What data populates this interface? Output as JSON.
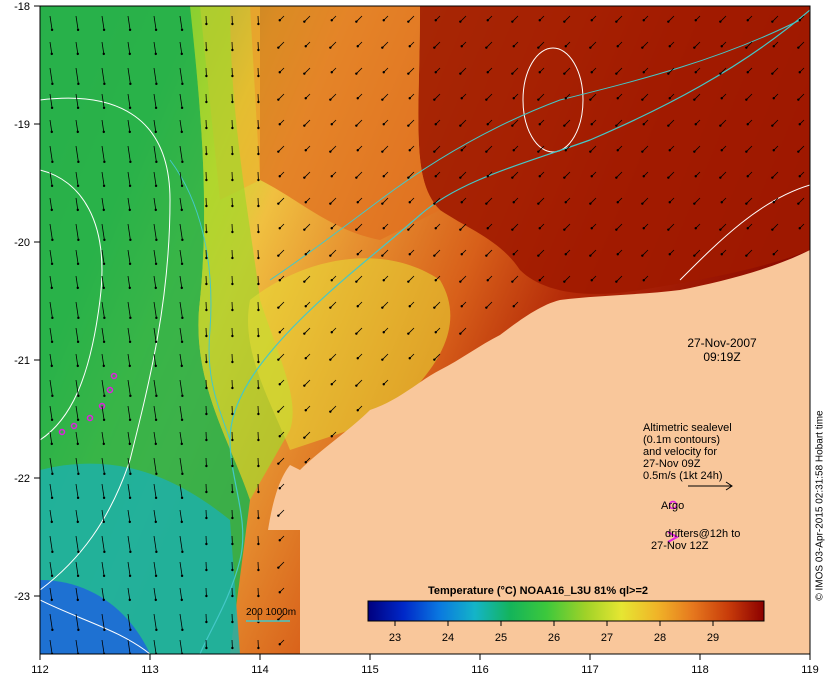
{
  "map": {
    "lon_ticks": [
      "112",
      "113",
      "114",
      "115",
      "116",
      "117",
      "118",
      "119"
    ],
    "lat_ticks": [
      "-18",
      "-19",
      "-20",
      "-21",
      "-22",
      "-23"
    ],
    "colors": {
      "land": "#f9c79b",
      "hot": "#9e0a00",
      "orange": "#e6720c",
      "yellow": "#e9e030",
      "green": "#28b04a",
      "teal": "#2ab0b0",
      "blue": "#1e6ad8",
      "contour": "#ffffff",
      "bathy": "#44c8c8",
      "argo": "#e020e0"
    }
  },
  "annotation": {
    "date": "27-Nov-2007",
    "time": "09:19Z"
  },
  "legend": {
    "line1": "Altimetric sealevel",
    "line2": "(0.1m contours)",
    "line3": "and velocity for",
    "line4": "27-Nov 09Z",
    "velocity_scale": "0.5m/s (1kt 24h)",
    "argo_label": "Argo",
    "drifters_label_1": "drifters@12h to",
    "drifters_label_2": "27-Nov 12Z"
  },
  "colorbar": {
    "title": "Temperature (°C) NOAA16_L3U 81% ql>=2",
    "ticks": [
      "23",
      "24",
      "25",
      "26",
      "27",
      "28",
      "29"
    ],
    "stops": [
      "#00007f",
      "#0028c8",
      "#0a78e0",
      "#14b4c8",
      "#14b45a",
      "#3cc83c",
      "#a0d228",
      "#e6e632",
      "#f0b428",
      "#e6781e",
      "#c83c0a",
      "#8c0000"
    ]
  },
  "bathy_legend": {
    "label": "200  1000m"
  },
  "credit": "© IMOS 03-Apr-2015 02:31:58 Hobart time"
}
